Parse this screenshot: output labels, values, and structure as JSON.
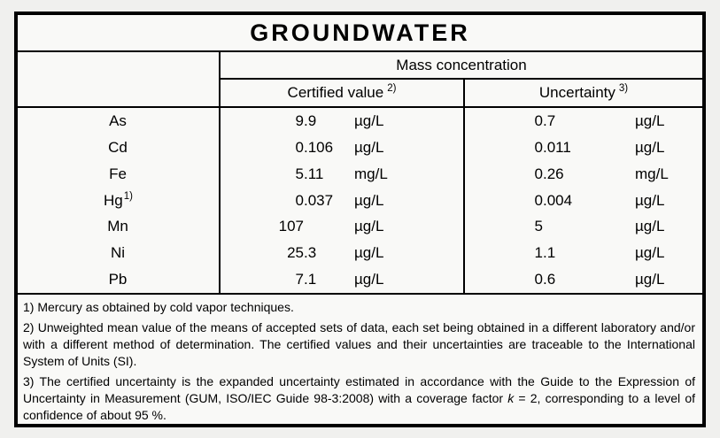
{
  "title": "GROUNDWATER",
  "table": {
    "group_header": "Mass concentration",
    "certified_header": "Certified value",
    "certified_header_sup": "2)",
    "uncertainty_header": "Uncertainty",
    "uncertainty_header_sup": "3)",
    "rows": [
      {
        "element": "As",
        "element_sup": "",
        "certified": {
          "value": "9.9",
          "unit": "µg/L"
        },
        "uncertainty": {
          "value": "0.7",
          "unit": "µg/L"
        }
      },
      {
        "element": "Cd",
        "element_sup": "",
        "certified": {
          "value": "0.106",
          "unit": "µg/L"
        },
        "uncertainty": {
          "value": "0.011",
          "unit": "µg/L"
        }
      },
      {
        "element": "Fe",
        "element_sup": "",
        "certified": {
          "value": "5.11",
          "unit": "mg/L"
        },
        "uncertainty": {
          "value": "0.26",
          "unit": "mg/L"
        }
      },
      {
        "element": "Hg",
        "element_sup": "1)",
        "certified": {
          "value": "0.037",
          "unit": "µg/L"
        },
        "uncertainty": {
          "value": "0.004",
          "unit": "µg/L"
        }
      },
      {
        "element": "Mn",
        "element_sup": "",
        "certified": {
          "value": "107",
          "unit": "µg/L"
        },
        "uncertainty": {
          "value": "5",
          "unit": "µg/L"
        }
      },
      {
        "element": "Ni",
        "element_sup": "",
        "certified": {
          "value": "25.3",
          "unit": "µg/L"
        },
        "uncertainty": {
          "value": "1.1",
          "unit": "µg/L"
        }
      },
      {
        "element": "Pb",
        "element_sup": "",
        "certified": {
          "value": "7.1",
          "unit": "µg/L"
        },
        "uncertainty": {
          "value": "0.6",
          "unit": "µg/L"
        }
      }
    ]
  },
  "footnotes": {
    "fn1": "1) Mercury as obtained by cold vapor techniques.",
    "fn2": "2) Unweighted mean value of the means of accepted sets of data, each set being obtained in a different laboratory and/or with a different method of determination. The certified values and their uncertainties are traceable to the International System of Units (SI).",
    "fn3_pre": "3) The certified uncertainty is the expanded uncertainty estimated in accordance with the Guide to the Expression of Uncertainty in Measurement (GUM, ISO/IEC Guide 98-3:2008) with a coverage factor ",
    "fn3_k": "k",
    "fn3_post": " = 2, corresponding to a level of confidence of about 95 %."
  },
  "colors": {
    "page_bg": "#f0f0ee",
    "table_bg": "#f9f9f7",
    "border": "#000000",
    "text": "#000000"
  }
}
